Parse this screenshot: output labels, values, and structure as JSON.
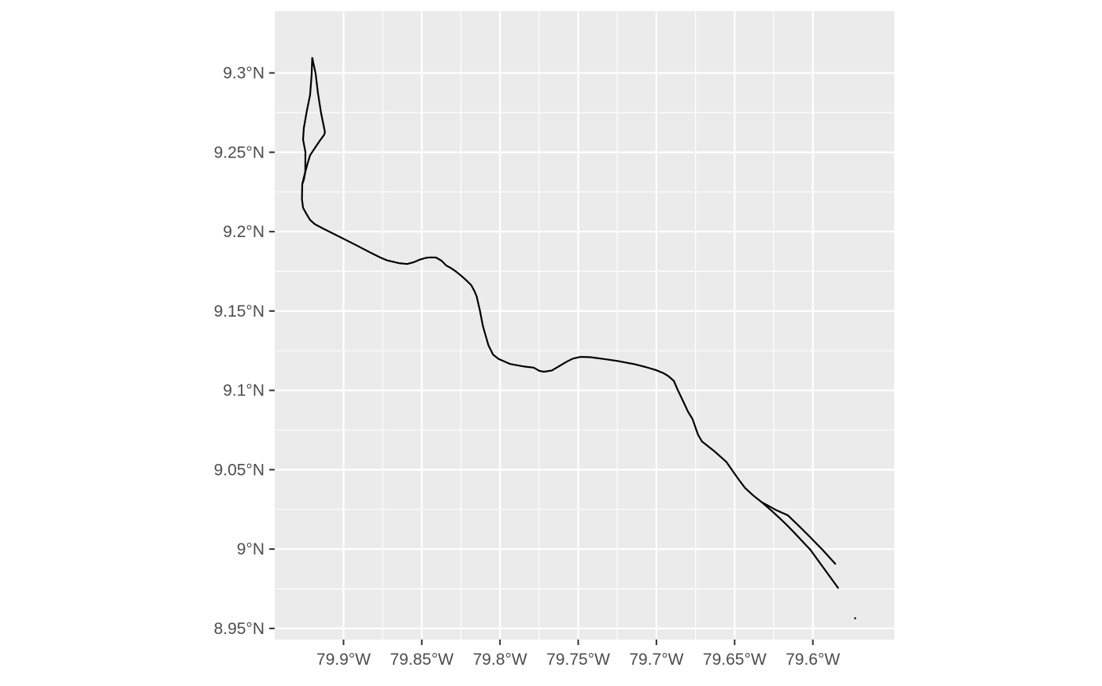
{
  "chart_data": {
    "type": "line",
    "title": "",
    "xlabel": "",
    "ylabel": "",
    "xlim": [
      -79.944,
      -79.548
    ],
    "ylim": [
      8.943,
      9.339
    ],
    "grid": true,
    "x_ticks": [
      {
        "value": -79.9,
        "label": "79.9°W"
      },
      {
        "value": -79.85,
        "label": "79.85°W"
      },
      {
        "value": -79.8,
        "label": "79.8°W"
      },
      {
        "value": -79.75,
        "label": "79.75°W"
      },
      {
        "value": -79.7,
        "label": "79.7°W"
      },
      {
        "value": -79.65,
        "label": "79.65°W"
      },
      {
        "value": -79.6,
        "label": "79.6°W"
      }
    ],
    "y_ticks": [
      {
        "value": 8.95,
        "label": "8.95°N"
      },
      {
        "value": 9.0,
        "label": "9°N"
      },
      {
        "value": 9.05,
        "label": "9.05°N"
      },
      {
        "value": 9.1,
        "label": "9.1°N"
      },
      {
        "value": 9.15,
        "label": "9.15°N"
      },
      {
        "value": 9.2,
        "label": "9.2°N"
      },
      {
        "value": 9.25,
        "label": "9.25°N"
      },
      {
        "value": 9.3,
        "label": "9.3°N"
      }
    ],
    "colors": {
      "panel": "#ebebeb",
      "grid": "#ffffff",
      "line": "#000000",
      "tick": "#333333"
    },
    "series": [
      {
        "points": [
          [
            -79.5732,
            8.9569
          ],
          [
            -79.5727,
            8.9559
          ]
        ]
      },
      {
        "points": [
          [
            -79.5836,
            8.9752
          ],
          [
            -79.5917,
            8.9861
          ],
          [
            -79.6015,
            8.9994
          ],
          [
            -79.6125,
            9.011
          ],
          [
            -79.6175,
            9.016
          ],
          [
            -79.6219,
            9.0201
          ],
          [
            -79.6269,
            9.0246
          ],
          [
            -79.6329,
            9.0297
          ],
          [
            -79.6379,
            9.0336
          ],
          [
            -79.6434,
            9.0386
          ],
          [
            -79.6469,
            9.0432
          ],
          [
            -79.6504,
            9.048
          ],
          [
            -79.6554,
            9.055
          ],
          [
            -79.6634,
            9.062
          ],
          [
            -79.6709,
            9.0678
          ],
          [
            -79.6734,
            9.072
          ],
          [
            -79.6769,
            9.0819
          ],
          [
            -79.6799,
            9.0867
          ],
          [
            -79.6829,
            9.0931
          ],
          [
            -79.6864,
            9.1004
          ],
          [
            -79.6889,
            9.106
          ],
          [
            -79.6924,
            9.109
          ],
          [
            -79.6954,
            9.1108
          ],
          [
            -79.7004,
            9.1128
          ],
          [
            -79.7069,
            9.1147
          ],
          [
            -79.7139,
            9.1165
          ],
          [
            -79.7249,
            9.1185
          ],
          [
            -79.7339,
            9.1198
          ],
          [
            -79.7424,
            9.1209
          ],
          [
            -79.7484,
            9.1211
          ],
          [
            -79.7534,
            9.12
          ],
          [
            -79.7574,
            9.118
          ],
          [
            -79.7624,
            9.1151
          ],
          [
            -79.7669,
            9.1125
          ],
          [
            -79.7719,
            9.1117
          ],
          [
            -79.7749,
            9.1123
          ],
          [
            -79.7784,
            9.1143
          ],
          [
            -79.7844,
            9.115
          ],
          [
            -79.7934,
            9.1166
          ],
          [
            -79.8009,
            9.1198
          ],
          [
            -79.8044,
            9.1225
          ],
          [
            -79.8074,
            9.1284
          ],
          [
            -79.8109,
            9.1405
          ],
          [
            -79.8129,
            9.1507
          ],
          [
            -79.8149,
            9.1591
          ],
          [
            -79.8164,
            9.1627
          ],
          [
            -79.8184,
            9.1663
          ],
          [
            -79.8219,
            9.1697
          ],
          [
            -79.8254,
            9.1727
          ],
          [
            -79.8284,
            9.1751
          ],
          [
            -79.8314,
            9.1771
          ],
          [
            -79.8344,
            9.1787
          ],
          [
            -79.8374,
            9.1817
          ],
          [
            -79.8409,
            9.1837
          ],
          [
            -79.8444,
            9.1838
          ],
          [
            -79.8474,
            9.1835
          ],
          [
            -79.8509,
            9.1825
          ],
          [
            -79.8549,
            9.1808
          ],
          [
            -79.8594,
            9.1796
          ],
          [
            -79.8644,
            9.1801
          ],
          [
            -79.8724,
            9.182
          ],
          [
            -79.8764,
            9.1837
          ],
          [
            -79.8824,
            9.1866
          ],
          [
            -79.8914,
            9.1912
          ],
          [
            -79.9024,
            9.1967
          ],
          [
            -79.9124,
            9.2016
          ],
          [
            -79.9184,
            9.2047
          ],
          [
            -79.9214,
            9.2074
          ],
          [
            -79.9239,
            9.2115
          ],
          [
            -79.9259,
            9.2151
          ],
          [
            -79.9266,
            9.2204
          ],
          [
            -79.9264,
            9.23
          ],
          [
            -79.9249,
            9.2361
          ],
          [
            -79.9229,
            9.2432
          ],
          [
            -79.9214,
            9.2481
          ],
          [
            -79.9184,
            9.2526
          ],
          [
            -79.9154,
            9.2569
          ],
          [
            -79.9124,
            9.261
          ],
          [
            -79.9119,
            9.2628
          ],
          [
            -79.9144,
            9.275
          ],
          [
            -79.9164,
            9.2874
          ],
          [
            -79.9179,
            9.2998
          ],
          [
            -79.9194,
            9.3067
          ],
          [
            -79.92,
            9.3098
          ]
        ]
      },
      {
        "points": [
          [
            -79.92,
            9.3098
          ],
          [
            -79.9204,
            9.2988
          ],
          [
            -79.9214,
            9.286
          ],
          [
            -79.9234,
            9.2763
          ],
          [
            -79.9254,
            9.2653
          ],
          [
            -79.9259,
            9.258
          ],
          [
            -79.9244,
            9.2501
          ],
          [
            -79.9245,
            9.2374
          ],
          [
            -79.9254,
            9.2327
          ],
          [
            -79.9264,
            9.23
          ]
        ]
      },
      {
        "points": [
          [
            -79.6329,
            9.0297
          ],
          [
            -79.6239,
            9.0248
          ],
          [
            -79.6159,
            9.0212
          ],
          [
            -79.6109,
            9.0165
          ],
          [
            -79.6024,
            9.0082
          ],
          [
            -79.5939,
            8.9996
          ],
          [
            -79.5854,
            8.9904
          ]
        ]
      }
    ]
  }
}
